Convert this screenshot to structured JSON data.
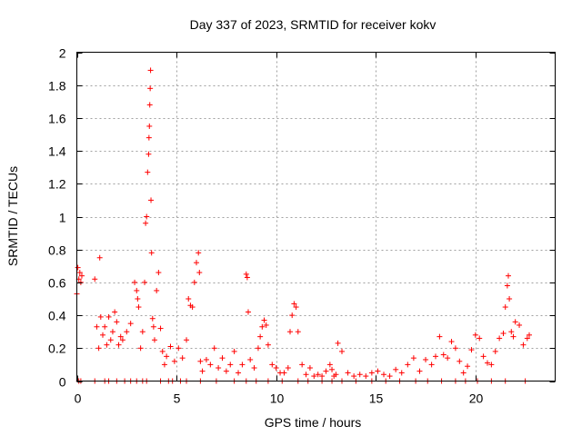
{
  "chart_data": {
    "type": "scatter",
    "title": "Day 337 of 2023, SRMTID for receiver kokv",
    "xlabel": "GPS time / hours",
    "ylabel": "SRMTID / TECUs",
    "xlim": [
      0,
      24
    ],
    "ylim": [
      0,
      2
    ],
    "xticks": [
      0,
      5,
      10,
      15,
      20
    ],
    "xtick_labels": [
      "0",
      "5",
      "10",
      "15",
      "20"
    ],
    "yticks": [
      0,
      0.2,
      0.4,
      0.6,
      0.8,
      1,
      1.2,
      1.4,
      1.6,
      1.8,
      2
    ],
    "ytick_labels": [
      "0",
      "0.2",
      "0.4",
      "0.6",
      "0.8",
      "1",
      "1.2",
      "1.4",
      "1.6",
      "1.8",
      "2"
    ],
    "grid": true,
    "marker": "+",
    "color": "#ff0000",
    "series": [
      {
        "name": "SRMTID",
        "x": [
          0.0,
          0.05,
          0.1,
          0.15,
          0.2,
          0.25,
          0.9,
          1.0,
          1.1,
          1.15,
          1.2,
          1.3,
          1.4,
          1.5,
          1.6,
          1.7,
          1.8,
          1.9,
          2.0,
          2.1,
          2.2,
          2.3,
          2.5,
          2.7,
          2.9,
          3.0,
          3.05,
          3.1,
          3.2,
          3.3,
          3.4,
          3.45,
          3.5,
          3.55,
          3.6,
          3.62,
          3.64,
          3.66,
          3.68,
          3.7,
          3.72,
          3.75,
          3.8,
          3.85,
          3.9,
          4.0,
          4.1,
          4.2,
          4.3,
          4.4,
          4.5,
          4.7,
          4.9,
          5.1,
          5.3,
          5.5,
          5.6,
          5.7,
          5.8,
          5.9,
          6.0,
          6.1,
          6.15,
          6.2,
          6.3,
          6.5,
          6.7,
          6.9,
          7.1,
          7.3,
          7.5,
          7.7,
          7.9,
          8.1,
          8.3,
          8.5,
          8.55,
          8.6,
          8.7,
          8.9,
          9.1,
          9.2,
          9.3,
          9.4,
          9.5,
          9.6,
          9.8,
          10.0,
          10.2,
          10.4,
          10.6,
          10.7,
          10.8,
          10.9,
          11.0,
          11.1,
          11.3,
          11.5,
          11.7,
          11.9,
          12.1,
          12.3,
          12.5,
          12.7,
          12.8,
          12.9,
          13.0,
          13.1,
          13.3,
          13.6,
          13.9,
          14.2,
          14.5,
          14.8,
          15.1,
          15.4,
          15.7,
          16.0,
          16.3,
          16.6,
          16.9,
          17.2,
          17.5,
          17.8,
          18.0,
          18.2,
          18.4,
          18.6,
          18.8,
          19.0,
          19.2,
          19.4,
          19.6,
          19.8,
          20.0,
          20.2,
          20.4,
          20.6,
          20.8,
          21.0,
          21.2,
          21.4,
          21.5,
          21.6,
          21.65,
          21.7,
          21.8,
          21.9,
          22.0,
          22.2,
          22.4,
          22.6,
          22.7
        ],
        "y": [
          0.53,
          0.69,
          0.62,
          0.66,
          0.6,
          0.64,
          0.62,
          0.33,
          0.2,
          0.75,
          0.39,
          0.28,
          0.33,
          0.22,
          0.39,
          0.25,
          0.3,
          0.42,
          0.36,
          0.22,
          0.27,
          0.25,
          0.3,
          0.35,
          0.6,
          0.55,
          0.5,
          0.45,
          0.2,
          0.3,
          0.6,
          0.96,
          1.0,
          1.27,
          1.38,
          1.48,
          1.55,
          1.68,
          1.78,
          1.89,
          1.1,
          0.78,
          0.38,
          0.33,
          0.25,
          0.55,
          0.66,
          0.32,
          0.18,
          0.1,
          0.15,
          0.21,
          0.12,
          0.2,
          0.14,
          0.25,
          0.5,
          0.46,
          0.45,
          0.6,
          0.72,
          0.78,
          0.66,
          0.12,
          0.06,
          0.13,
          0.1,
          0.2,
          0.08,
          0.14,
          0.06,
          0.1,
          0.18,
          0.05,
          0.1,
          0.65,
          0.63,
          0.42,
          0.13,
          0.08,
          0.2,
          0.27,
          0.33,
          0.37,
          0.34,
          0.22,
          0.1,
          0.08,
          0.05,
          0.05,
          0.08,
          0.3,
          0.4,
          0.47,
          0.45,
          0.3,
          0.1,
          0.04,
          0.08,
          0.03,
          0.04,
          0.03,
          0.06,
          0.1,
          0.07,
          0.03,
          0.04,
          0.23,
          0.18,
          0.05,
          0.03,
          0.04,
          0.03,
          0.05,
          0.06,
          0.04,
          0.03,
          0.07,
          0.05,
          0.1,
          0.14,
          0.06,
          0.13,
          0.1,
          0.15,
          0.27,
          0.16,
          0.14,
          0.24,
          0.2,
          0.12,
          0.05,
          0.09,
          0.19,
          0.28,
          0.26,
          0.15,
          0.11,
          0.1,
          0.18,
          0.26,
          0.29,
          0.45,
          0.58,
          0.64,
          0.5,
          0.3,
          0.27,
          0.36,
          0.34,
          0.22,
          0.26,
          0.28
        ],
        "zero_markers_x": [
          0.1,
          0.2,
          0.9,
          1.4,
          1.6,
          2.0,
          2.4,
          2.7,
          3.0,
          3.3,
          3.5,
          4.2,
          4.6,
          4.8,
          5.2,
          5.5,
          6.2,
          7.0,
          7.9,
          8.5,
          9.0,
          9.6,
          10.3,
          11.1,
          11.6,
          12.3,
          12.8,
          13.3,
          14.0,
          14.8,
          15.5,
          16.2,
          17.0,
          17.6,
          18.3,
          19.0,
          19.5,
          20.1,
          20.8,
          21.5,
          22.5
        ]
      }
    ]
  }
}
